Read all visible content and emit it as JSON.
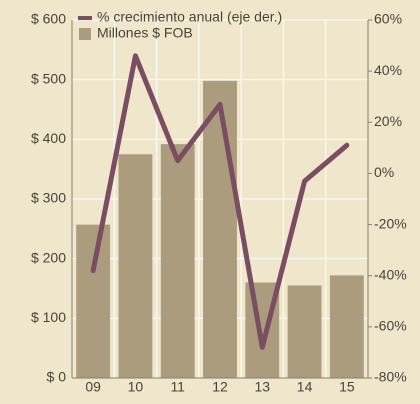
{
  "chart_data": {
    "type": "bar_line",
    "categories": [
      "09",
      "10",
      "11",
      "12",
      "13",
      "14",
      "15"
    ],
    "series": [
      {
        "name": "% crecimiento anual (eje der.)",
        "type": "line",
        "axis": "y2",
        "color": "#7b4d62",
        "values": [
          -38,
          46,
          5,
          27,
          -68,
          -3,
          11
        ]
      },
      {
        "name": "Millones $ FOB",
        "type": "bar",
        "axis": "y",
        "color": "#aa9c7c",
        "values": [
          257,
          375,
          392,
          498,
          160,
          155,
          172
        ]
      }
    ],
    "ylim": [
      0,
      600
    ],
    "yticks": [
      {
        "value": 0,
        "label": "$ 0"
      },
      {
        "value": 100,
        "label": "$ 100"
      },
      {
        "value": 200,
        "label": "$ 200"
      },
      {
        "value": 300,
        "label": "$ 300"
      },
      {
        "value": 400,
        "label": "$ 400"
      },
      {
        "value": 500,
        "label": "$ 500"
      },
      {
        "value": 600,
        "label": "$ 600"
      }
    ],
    "y2lim": [
      -80,
      60
    ],
    "y2ticks": [
      {
        "value": -80,
        "label": "-80%"
      },
      {
        "value": -60,
        "label": "-60%"
      },
      {
        "value": -40,
        "label": "-40%"
      },
      {
        "value": -20,
        "label": "-20%"
      },
      {
        "value": 0,
        "label": "0%"
      },
      {
        "value": 20,
        "label": "20%"
      },
      {
        "value": 40,
        "label": "40%"
      },
      {
        "value": 60,
        "label": "60%"
      }
    ],
    "grid": true
  }
}
